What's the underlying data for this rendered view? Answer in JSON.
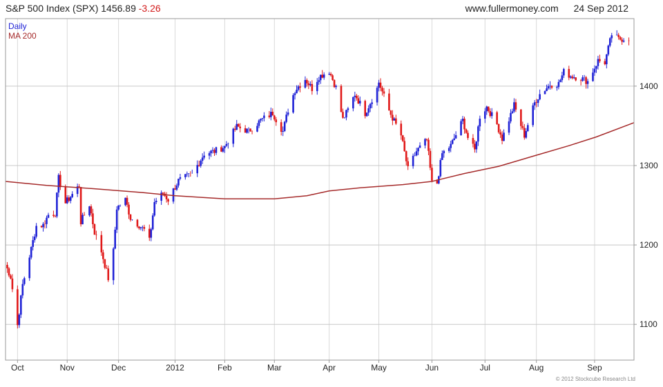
{
  "header": {
    "title": "S&P 500 Index (SPX) 1456.89",
    "change": "-3.26",
    "site": "www.fullermoney.com",
    "date": "24 Sep 2012"
  },
  "legend": {
    "daily": "Daily",
    "ma": "MA 200"
  },
  "copyright": "© 2012 Stockcube Research Ltd",
  "colors": {
    "up": "#1f22d6",
    "down": "#e01818",
    "ma": "#a52a2a",
    "grid": "#d9d9d9",
    "frame": "#9a9a9a"
  },
  "chart_data": {
    "type": "line",
    "title": "S&P 500 Index (SPX)",
    "ylim": [
      1055,
      1485
    ],
    "yticks": [
      1100,
      1200,
      1300,
      1400
    ],
    "ytick_labels": [
      "1100",
      "1200",
      "1300",
      "1400"
    ],
    "x_start": "2011-09-26",
    "x_end": "2012-09-27",
    "xticks": [
      "Oct",
      "Nov",
      "Dec",
      "2012",
      "Feb",
      "Mar",
      "Apr",
      "May",
      "Jun",
      "Jul",
      "Aug",
      "Sep"
    ],
    "xtick_dates": [
      "2011-10-03",
      "2011-11-01",
      "2011-12-01",
      "2012-01-03",
      "2012-02-01",
      "2012-03-01",
      "2012-04-02",
      "2012-05-01",
      "2012-06-01",
      "2012-07-02",
      "2012-08-01",
      "2012-09-04"
    ],
    "series": [
      {
        "name": "Daily",
        "values": [
          [
            "2011-09-26",
            1175
          ],
          [
            "2011-09-29",
            1160
          ],
          [
            "2011-10-03",
            1099
          ],
          [
            "2011-10-06",
            1150
          ],
          [
            "2011-10-11",
            1195
          ],
          [
            "2011-10-14",
            1224
          ],
          [
            "2011-10-18",
            1225
          ],
          [
            "2011-10-21",
            1238
          ],
          [
            "2011-10-25",
            1240
          ],
          [
            "2011-10-27",
            1284
          ],
          [
            "2011-10-31",
            1253
          ],
          [
            "2011-11-03",
            1261
          ],
          [
            "2011-11-08",
            1275
          ],
          [
            "2011-11-09",
            1229
          ],
          [
            "2011-11-14",
            1251
          ],
          [
            "2011-11-17",
            1216
          ],
          [
            "2011-11-21",
            1192
          ],
          [
            "2011-11-25",
            1158
          ],
          [
            "2011-11-28",
            1192
          ],
          [
            "2011-11-30",
            1247
          ],
          [
            "2011-12-05",
            1257
          ],
          [
            "2011-12-08",
            1234
          ],
          [
            "2011-12-13",
            1225
          ],
          [
            "2011-12-16",
            1219
          ],
          [
            "2011-12-19",
            1205
          ],
          [
            "2011-12-22",
            1254
          ],
          [
            "2011-12-27",
            1265
          ],
          [
            "2011-12-30",
            1257
          ],
          [
            "2012-01-05",
            1281
          ],
          [
            "2012-01-13",
            1289
          ],
          [
            "2012-01-20",
            1315
          ],
          [
            "2012-01-26",
            1318
          ],
          [
            "2012-02-01",
            1324
          ],
          [
            "2012-02-08",
            1349
          ],
          [
            "2012-02-15",
            1343
          ],
          [
            "2012-02-22",
            1357
          ],
          [
            "2012-02-29",
            1366
          ],
          [
            "2012-03-06",
            1343
          ],
          [
            "2012-03-09",
            1370
          ],
          [
            "2012-03-13",
            1395
          ],
          [
            "2012-03-19",
            1409
          ],
          [
            "2012-03-23",
            1397
          ],
          [
            "2012-03-27",
            1412
          ],
          [
            "2012-04-02",
            1419
          ],
          [
            "2012-04-06",
            1398
          ],
          [
            "2012-04-10",
            1358
          ],
          [
            "2012-04-13",
            1370
          ],
          [
            "2012-04-17",
            1390
          ],
          [
            "2012-04-23",
            1366
          ],
          [
            "2012-04-30",
            1397
          ],
          [
            "2012-05-01",
            1405
          ],
          [
            "2012-05-07",
            1369
          ],
          [
            "2012-05-14",
            1338
          ],
          [
            "2012-05-18",
            1295
          ],
          [
            "2012-05-23",
            1318
          ],
          [
            "2012-05-29",
            1332
          ],
          [
            "2012-06-01",
            1278
          ],
          [
            "2012-06-04",
            1278
          ],
          [
            "2012-06-07",
            1315
          ],
          [
            "2012-06-12",
            1325
          ],
          [
            "2012-06-19",
            1357
          ],
          [
            "2012-06-22",
            1335
          ],
          [
            "2012-06-26",
            1319
          ],
          [
            "2012-06-29",
            1362
          ],
          [
            "2012-07-03",
            1374
          ],
          [
            "2012-07-09",
            1352
          ],
          [
            "2012-07-12",
            1334
          ],
          [
            "2012-07-19",
            1376
          ],
          [
            "2012-07-25",
            1338
          ],
          [
            "2012-07-31",
            1379
          ],
          [
            "2012-08-03",
            1390
          ],
          [
            "2012-08-09",
            1402
          ],
          [
            "2012-08-14",
            1403
          ],
          [
            "2012-08-17",
            1418
          ],
          [
            "2012-08-21",
            1413
          ],
          [
            "2012-08-27",
            1410
          ],
          [
            "2012-08-31",
            1406
          ],
          [
            "2012-09-06",
            1432
          ],
          [
            "2012-09-10",
            1430
          ],
          [
            "2012-09-14",
            1465
          ],
          [
            "2012-09-18",
            1459
          ],
          [
            "2012-09-21",
            1460
          ],
          [
            "2012-09-24",
            1457
          ]
        ]
      },
      {
        "name": "MA 200",
        "values": [
          [
            "2011-09-26",
            1280
          ],
          [
            "2011-10-20",
            1275
          ],
          [
            "2011-11-15",
            1271
          ],
          [
            "2011-12-15",
            1266
          ],
          [
            "2012-01-03",
            1262
          ],
          [
            "2012-02-01",
            1258
          ],
          [
            "2012-03-01",
            1258
          ],
          [
            "2012-03-20",
            1262
          ],
          [
            "2012-04-02",
            1268
          ],
          [
            "2012-04-20",
            1272
          ],
          [
            "2012-05-15",
            1276
          ],
          [
            "2012-06-01",
            1280
          ],
          [
            "2012-06-20",
            1290
          ],
          [
            "2012-07-10",
            1299
          ],
          [
            "2012-08-01",
            1313
          ],
          [
            "2012-08-20",
            1325
          ],
          [
            "2012-09-05",
            1336
          ],
          [
            "2012-09-27",
            1354
          ]
        ]
      }
    ]
  }
}
